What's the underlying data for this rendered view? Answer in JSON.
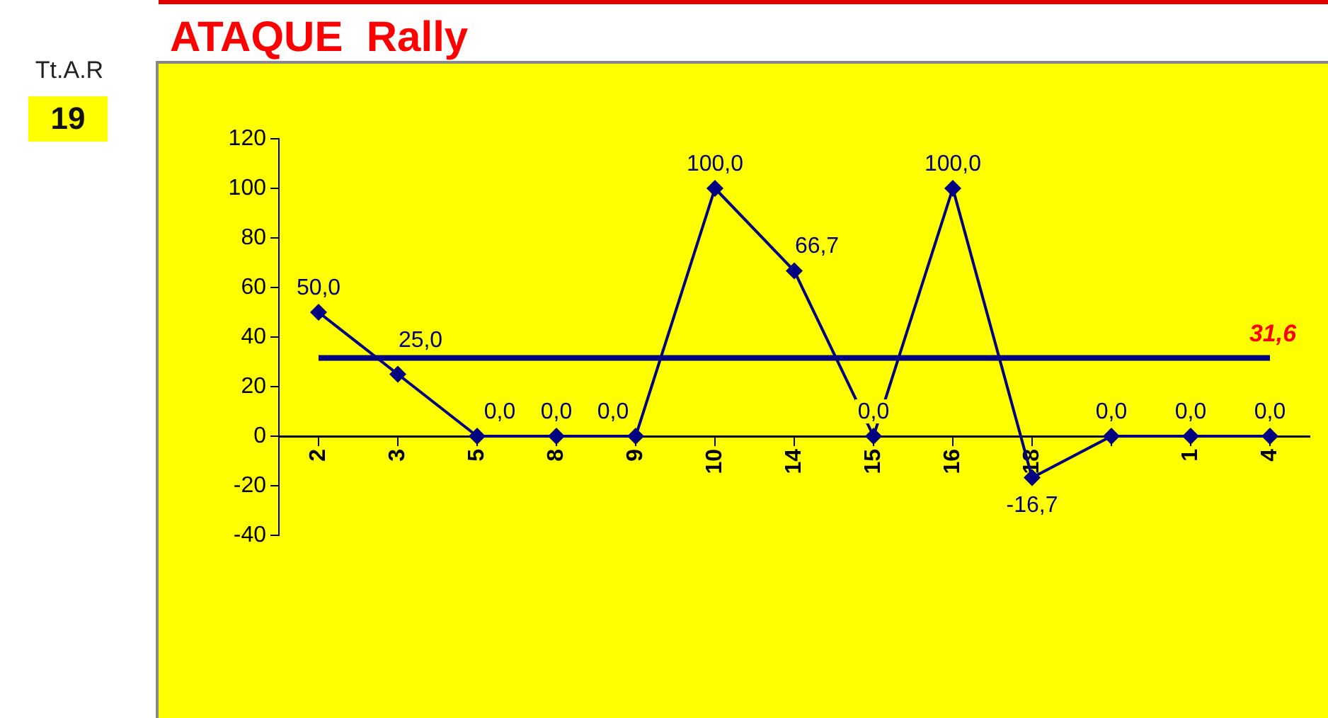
{
  "chart_data": {
    "type": "line",
    "title": "ATAQUE  Rally",
    "categories": [
      "2",
      "3",
      "5",
      "8",
      "9",
      "10",
      "14",
      "15",
      "16",
      "18",
      null,
      "1",
      "4"
    ],
    "series": [
      {
        "color": "#000080",
        "values": [
          50,
          25,
          0,
          0,
          0,
          100,
          66.7,
          0,
          100,
          -16.7,
          0,
          0,
          0
        ],
        "value_labels": [
          "50,0",
          "25,0",
          "0,0",
          "0,0",
          "0,0",
          "100,0",
          "66,7",
          "0,0",
          "100,0",
          "-16,7",
          "0,0",
          "0,0",
          "0,0"
        ]
      }
    ],
    "ylim": [
      -40,
      120
    ],
    "yticks": [
      -40,
      -20,
      0,
      20,
      40,
      60,
      80,
      100,
      120
    ],
    "grid": false,
    "legend": false,
    "marker": "diamond",
    "line_style": "solid",
    "ref_lines": [
      {
        "axis": "y",
        "value": 31.6,
        "label": "31,6",
        "color": "#000080"
      }
    ],
    "annotations": [
      "Tt.A.R",
      "19"
    ]
  }
}
